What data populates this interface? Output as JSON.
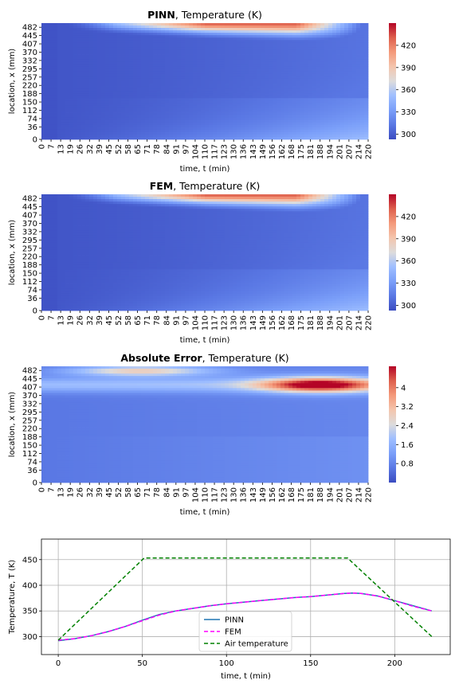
{
  "chart_data": [
    {
      "type": "heatmap",
      "title_bold": "PINN",
      "title_rest": ", Temperature (K)",
      "xlabel": "time, t (min)",
      "ylabel": "location, x (mm)",
      "x_ticks": [
        "0",
        "7",
        "13",
        "19",
        "26",
        "32",
        "39",
        "45",
        "52",
        "58",
        "65",
        "71",
        "78",
        "84",
        "91",
        "97",
        "104",
        "110",
        "117",
        "123",
        "130",
        "136",
        "143",
        "149",
        "156",
        "162",
        "168",
        "175",
        "181",
        "188",
        "194",
        "201",
        "207",
        "214",
        "220"
      ],
      "y_ticks": [
        "0",
        "36",
        "74",
        "112",
        "150",
        "188",
        "220",
        "257",
        "295",
        "332",
        "370",
        "407",
        "445",
        "482"
      ],
      "colorbar": {
        "min": 293,
        "max": 450,
        "ticks": [
          300,
          330,
          360,
          390,
          420
        ]
      },
      "field": "temperature"
    },
    {
      "type": "heatmap",
      "title_bold": "FEM",
      "title_rest": ", Temperature (K)",
      "xlabel": "time, t (min)",
      "ylabel": "location, x (mm)",
      "x_ticks": [
        "0",
        "7",
        "13",
        "19",
        "26",
        "32",
        "39",
        "45",
        "52",
        "58",
        "65",
        "71",
        "78",
        "84",
        "91",
        "97",
        "104",
        "110",
        "117",
        "123",
        "130",
        "136",
        "143",
        "149",
        "156",
        "162",
        "168",
        "175",
        "181",
        "188",
        "194",
        "201",
        "207",
        "214",
        "220"
      ],
      "y_ticks": [
        "0",
        "36",
        "74",
        "112",
        "150",
        "188",
        "220",
        "257",
        "295",
        "332",
        "370",
        "407",
        "445",
        "482"
      ],
      "colorbar": {
        "min": 293,
        "max": 450,
        "ticks": [
          300,
          330,
          360,
          390,
          420
        ]
      },
      "field": "temperature"
    },
    {
      "type": "heatmap",
      "title_bold": "Absolute Error",
      "title_rest": ", Temperature (K)",
      "xlabel": "time, t (min)",
      "ylabel": "location, x (mm)",
      "x_ticks": [
        "0",
        "7",
        "13",
        "19",
        "26",
        "32",
        "39",
        "45",
        "52",
        "58",
        "65",
        "71",
        "78",
        "84",
        "91",
        "97",
        "104",
        "110",
        "117",
        "123",
        "130",
        "136",
        "143",
        "149",
        "156",
        "162",
        "168",
        "175",
        "181",
        "188",
        "194",
        "201",
        "207",
        "214",
        "220"
      ],
      "y_ticks": [
        "0",
        "36",
        "74",
        "112",
        "150",
        "188",
        "220",
        "257",
        "295",
        "332",
        "370",
        "407",
        "445",
        "482"
      ],
      "colorbar": {
        "min": 0,
        "max": 4.9,
        "ticks": [
          0.8,
          1.6,
          2.4,
          3.2,
          4.0
        ]
      },
      "field": "error"
    },
    {
      "type": "line",
      "xlabel": "time, t (min)",
      "ylabel": "Temperature, T (K)",
      "xlim": [
        -10,
        233
      ],
      "ylim": [
        265,
        490
      ],
      "x_ticks": [
        0,
        50,
        100,
        150,
        200
      ],
      "y_ticks": [
        300,
        350,
        400,
        450
      ],
      "grid": true,
      "legend_position": "lower-center",
      "series": [
        {
          "name": "PINN",
          "color": "#1f77b4",
          "dash": "",
          "x": [
            0,
            10,
            20,
            30,
            40,
            50,
            60,
            70,
            80,
            90,
            100,
            110,
            120,
            130,
            140,
            150,
            160,
            170,
            175,
            180,
            190,
            200,
            210,
            222
          ],
          "y": [
            292,
            296,
            302,
            310,
            320,
            332,
            343,
            350,
            355,
            360,
            364,
            367,
            370,
            373,
            376,
            378,
            381,
            384,
            385,
            384,
            379,
            370,
            361,
            350
          ]
        },
        {
          "name": "FEM",
          "color": "#ff00ff",
          "dash": "5,3",
          "x": [
            0,
            10,
            20,
            30,
            40,
            50,
            60,
            70,
            80,
            90,
            100,
            110,
            120,
            130,
            140,
            150,
            160,
            170,
            175,
            180,
            190,
            200,
            210,
            222
          ],
          "y": [
            293,
            296,
            302,
            310,
            320,
            331,
            342,
            350,
            355,
            360,
            364,
            367,
            370,
            373,
            376,
            378,
            381,
            384,
            385,
            384,
            379,
            370,
            360,
            350
          ]
        },
        {
          "name": "Air temperature",
          "color": "#008000",
          "dash": "5,3",
          "x": [
            0,
            51,
            172,
            222
          ],
          "y": [
            293,
            453,
            453,
            300
          ]
        }
      ]
    }
  ],
  "colors": {
    "cmap_low": "#3b4cc0",
    "cmap_mid": "#dddddd",
    "cmap_high": "#b40426"
  }
}
